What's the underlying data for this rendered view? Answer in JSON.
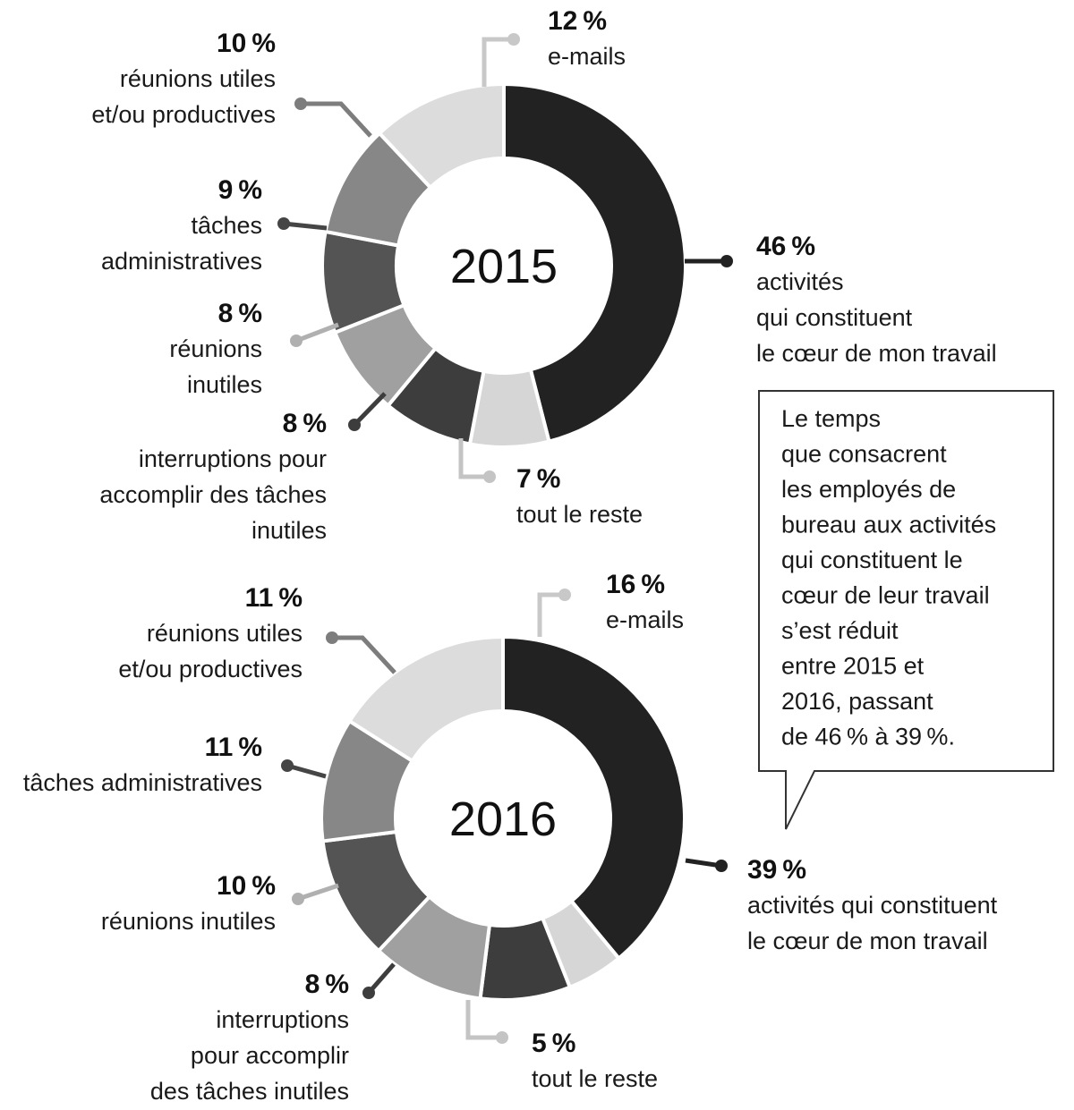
{
  "chart_data": [
    {
      "type": "pie",
      "variant": "donut",
      "center_label": "2015",
      "slices": [
        {
          "value": 46,
          "pct_label": "46 %",
          "desc": [
            "activités",
            "qui constituent",
            "le cœur de mon travail"
          ],
          "color": "#222222"
        },
        {
          "value": 7,
          "pct_label": "7 %",
          "desc": [
            "tout le reste"
          ],
          "color": "#d6d6d6"
        },
        {
          "value": 8,
          "pct_label": "8 %",
          "desc": [
            "interruptions pour",
            "accomplir des tâches",
            "inutiles"
          ],
          "color": "#3d3d3d"
        },
        {
          "value": 8,
          "pct_label": "8 %",
          "desc": [
            "réunions",
            "inutiles"
          ],
          "color": "#a0a0a0"
        },
        {
          "value": 9,
          "pct_label": "9 %",
          "desc": [
            "tâches",
            "administratives"
          ],
          "color": "#545454"
        },
        {
          "value": 10,
          "pct_label": "10 %",
          "desc": [
            "réunions utiles",
            "et/ou productives"
          ],
          "color": "#878787"
        },
        {
          "value": 12,
          "pct_label": "12 %",
          "desc": [
            "e-mails"
          ],
          "color": "#dcdcdc"
        }
      ]
    },
    {
      "type": "pie",
      "variant": "donut",
      "center_label": "2016",
      "slices": [
        {
          "value": 39,
          "pct_label": "39 %",
          "desc": [
            "activités qui constituent",
            "le cœur de mon travail"
          ],
          "color": "#222222"
        },
        {
          "value": 5,
          "pct_label": "5 %",
          "desc": [
            "tout le reste"
          ],
          "color": "#d6d6d6"
        },
        {
          "value": 8,
          "pct_label": "8 %",
          "desc": [
            "interruptions",
            "pour accomplir",
            "des tâches inutiles"
          ],
          "color": "#3d3d3d"
        },
        {
          "value": 10,
          "pct_label": "10 %",
          "desc": [
            "réunions inutiles"
          ],
          "color": "#a0a0a0"
        },
        {
          "value": 11,
          "pct_label": "11 %",
          "desc": [
            "tâches administratives"
          ],
          "color": "#545454"
        },
        {
          "value": 11,
          "pct_label": "11 %",
          "desc": [
            "réunions utiles",
            "et/ou productives"
          ],
          "color": "#878787"
        },
        {
          "value": 16,
          "pct_label": "16 %",
          "desc": [
            "e-mails"
          ],
          "color": "#dcdcdc"
        }
      ]
    }
  ],
  "callout": {
    "lines": [
      "Le temps",
      "que consacrent",
      "les employés de",
      "bureau aux activités",
      "qui constituent le",
      "cœur de leur travail",
      "s’est réduit",
      "entre 2015 et",
      "2016, passant",
      "de 46 % à 39 %."
    ]
  }
}
